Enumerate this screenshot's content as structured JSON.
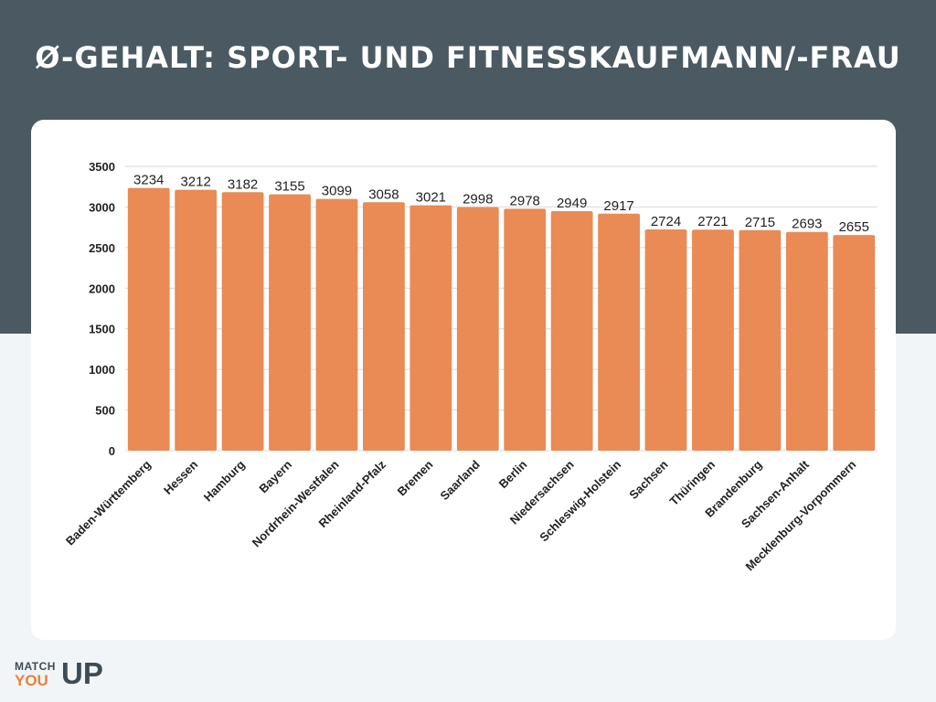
{
  "page": {
    "title": "Ø-Gehalt: Sport- und Fitnesskaufmann/-frau"
  },
  "colors": {
    "header_band": "#4a5962",
    "background": "#f1f5f8",
    "card": "#ffffff",
    "bar": "#ea8a54",
    "grid": "#d9d9d9",
    "text": "#222222"
  },
  "logo": {
    "line1": "MATCH",
    "line2": "YOU",
    "big": "UP"
  },
  "chart_data": {
    "type": "bar",
    "title": "",
    "xlabel": "",
    "ylabel": "",
    "ylim": [
      0,
      3500
    ],
    "yticks": [
      0,
      500,
      1000,
      1500,
      2000,
      2500,
      3000,
      3500
    ],
    "grid": true,
    "categories": [
      "Baden-Württemberg",
      "Hessen",
      "Hamburg",
      "Bayern",
      "Nordrhein-Westfalen",
      "Rheinland-Pfalz",
      "Bremen",
      "Saarland",
      "Berlin",
      "Niedersachsen",
      "Schleswig-Holstein",
      "Sachsen",
      "Thüringen",
      "Brandenburg",
      "Sachsen-Anhalt",
      "Mecklenburg-Vorpommern"
    ],
    "values": [
      3234,
      3212,
      3182,
      3155,
      3099,
      3058,
      3021,
      2998,
      2978,
      2949,
      2917,
      2724,
      2721,
      2715,
      2693,
      2655
    ]
  }
}
